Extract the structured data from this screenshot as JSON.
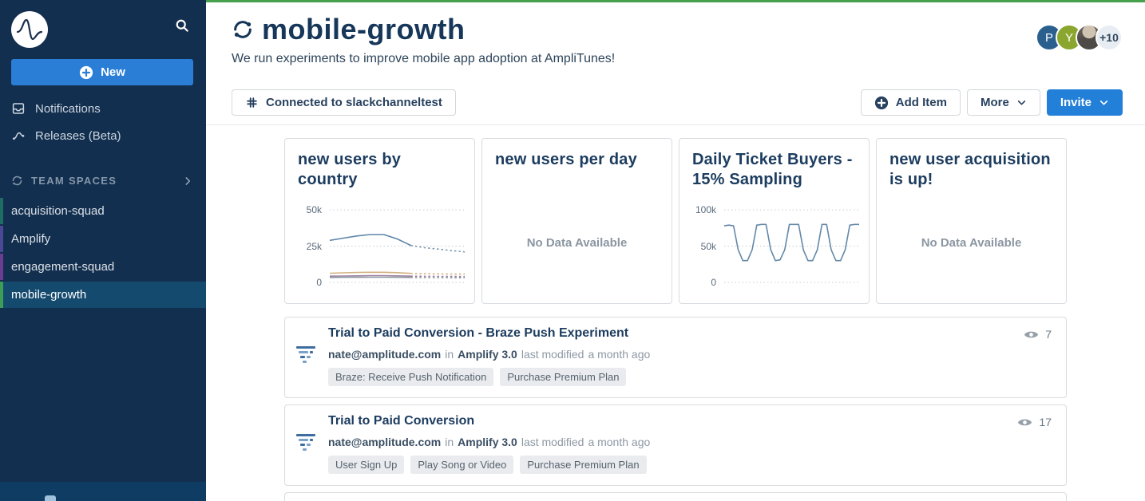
{
  "sidebar": {
    "new_label": "New",
    "nav": [
      {
        "label": "Notifications"
      },
      {
        "label": "Releases (Beta)"
      }
    ],
    "section_label": "TEAM SPACES",
    "teams": [
      {
        "label": "acquisition-squad",
        "color": "#1d6e62",
        "selected": false
      },
      {
        "label": "Amplify",
        "color": "#4b4896",
        "selected": false
      },
      {
        "label": "engagement-squad",
        "color": "#6a3d92",
        "selected": false
      },
      {
        "label": "mobile-growth",
        "color": "#3c9e54",
        "selected": true
      }
    ]
  },
  "header": {
    "title": "mobile-growth",
    "subtitle": "We run experiments to improve mobile app adoption at AmpliTunes!",
    "avatars": [
      {
        "label": "P",
        "bg": "#2a5f8e"
      },
      {
        "label": "Y",
        "bg": "#8aa62e"
      },
      {
        "label": "",
        "bg": "photo"
      },
      {
        "label": "+10",
        "bg": "#e7edf3"
      }
    ]
  },
  "toolbar": {
    "connected_label": "Connected to slackchanneltest",
    "add_item_label": "Add Item",
    "more_label": "More",
    "invite_label": "Invite"
  },
  "cards": [
    {
      "title": "new users by country",
      "empty": ""
    },
    {
      "title": "new users per day",
      "empty": "No Data Available"
    },
    {
      "title": "Daily Ticket Buyers - 15% Sampling",
      "empty": ""
    },
    {
      "title": "new user acquisition is up!",
      "empty": "No Data Available"
    }
  ],
  "chart_data": [
    {
      "type": "line",
      "title": "new users by country",
      "ylabel": "",
      "xlabel": "",
      "ylim": [
        0,
        55
      ],
      "xmax": 10,
      "grid": "dotted-horizontal",
      "legend": "none",
      "yticks": [
        {
          "value": 50,
          "label": "50k"
        },
        {
          "value": 25,
          "label": "25k"
        },
        {
          "value": 0,
          "label": "0"
        }
      ],
      "series": [
        {
          "name": "country-1",
          "color": "#5e85a9",
          "dash": false,
          "x": [
            0,
            1,
            2,
            3,
            4,
            5,
            6
          ],
          "values": [
            29,
            30.5,
            32,
            33,
            33,
            30,
            25.5
          ]
        },
        {
          "name": "country-1-forecast",
          "color": "#7d97ad",
          "dash": true,
          "x": [
            6,
            7,
            8,
            9,
            10
          ],
          "values": [
            25.5,
            24,
            23,
            22,
            21
          ]
        },
        {
          "name": "country-2",
          "color": "#d2b280",
          "dash": false,
          "x": [
            0,
            1,
            2,
            3,
            4,
            5,
            6
          ],
          "values": [
            6.3,
            6.6,
            6.9,
            7,
            7,
            6.7,
            6.2
          ]
        },
        {
          "name": "country-2-forecast",
          "color": "#d2b280",
          "dash": true,
          "x": [
            6,
            7,
            8,
            9,
            10
          ],
          "values": [
            6.2,
            6,
            5.9,
            5.8,
            5.7
          ]
        },
        {
          "name": "country-3",
          "color": "#9b7f9e",
          "dash": false,
          "x": [
            0,
            1,
            2,
            3,
            4,
            5,
            6
          ],
          "values": [
            4.3,
            4.4,
            4.5,
            4.7,
            4.7,
            4.5,
            4.3
          ]
        },
        {
          "name": "country-3-forecast",
          "color": "#9b7f9e",
          "dash": true,
          "x": [
            6,
            7,
            8,
            9,
            10
          ],
          "values": [
            4.3,
            4.2,
            4.1,
            4.1,
            4
          ]
        },
        {
          "name": "country-4",
          "color": "#8f9aa5",
          "dash": false,
          "x": [
            0,
            1,
            2,
            3,
            4,
            5,
            6
          ],
          "values": [
            3.4,
            3.5,
            3.5,
            3.6,
            3.6,
            3.5,
            3.4
          ]
        },
        {
          "name": "country-4-forecast",
          "color": "#8f9aa5",
          "dash": true,
          "x": [
            6,
            7,
            8,
            9,
            10
          ],
          "values": [
            3.4,
            3.3,
            3.3,
            3.2,
            3.2
          ]
        }
      ]
    },
    {
      "type": "line",
      "title": "Daily Ticket Buyers - 15% Sampling",
      "ylabel": "",
      "xlabel": "",
      "ylim": [
        0,
        110
      ],
      "xmax": 29,
      "grid": "dotted-horizontal",
      "legend": "none",
      "yticks": [
        {
          "value": 100,
          "label": "100k"
        },
        {
          "value": 50,
          "label": "50k"
        },
        {
          "value": 0,
          "label": "0"
        }
      ],
      "series": [
        {
          "name": "daily-ticket-buyers",
          "color": "#6488a8",
          "dash": false,
          "x": [
            0,
            1,
            2,
            3,
            4,
            5,
            6,
            7,
            8,
            9,
            10,
            11,
            12,
            13,
            14,
            15,
            16,
            17,
            18,
            19,
            20,
            21,
            22,
            23,
            24,
            25,
            26,
            27,
            28,
            29
          ],
          "values": [
            78,
            79,
            78,
            45,
            30,
            30,
            45,
            79,
            80,
            80,
            45,
            30,
            31,
            45,
            80,
            80,
            80,
            45,
            30,
            30,
            45,
            80,
            80,
            45,
            30,
            30,
            45,
            79,
            80,
            80
          ]
        }
      ]
    }
  ],
  "rows": [
    {
      "title": "Trial to Paid Conversion - Braze Push Experiment",
      "owner": "nate@amplitude.com",
      "in_label": "in",
      "space": "Amplify 3.0",
      "modified_label": "last modified",
      "modified_time": "a month ago",
      "tags": [
        "Braze: Receive Push Notification",
        "Purchase Premium Plan"
      ],
      "views": "7"
    },
    {
      "title": "Trial to Paid Conversion",
      "owner": "nate@amplitude.com",
      "in_label": "in",
      "space": "Amplify 3.0",
      "modified_label": "last modified",
      "modified_time": "a month ago",
      "tags": [
        "User Sign Up",
        "Play Song or Video",
        "Purchase Premium Plan"
      ],
      "views": "17"
    }
  ]
}
